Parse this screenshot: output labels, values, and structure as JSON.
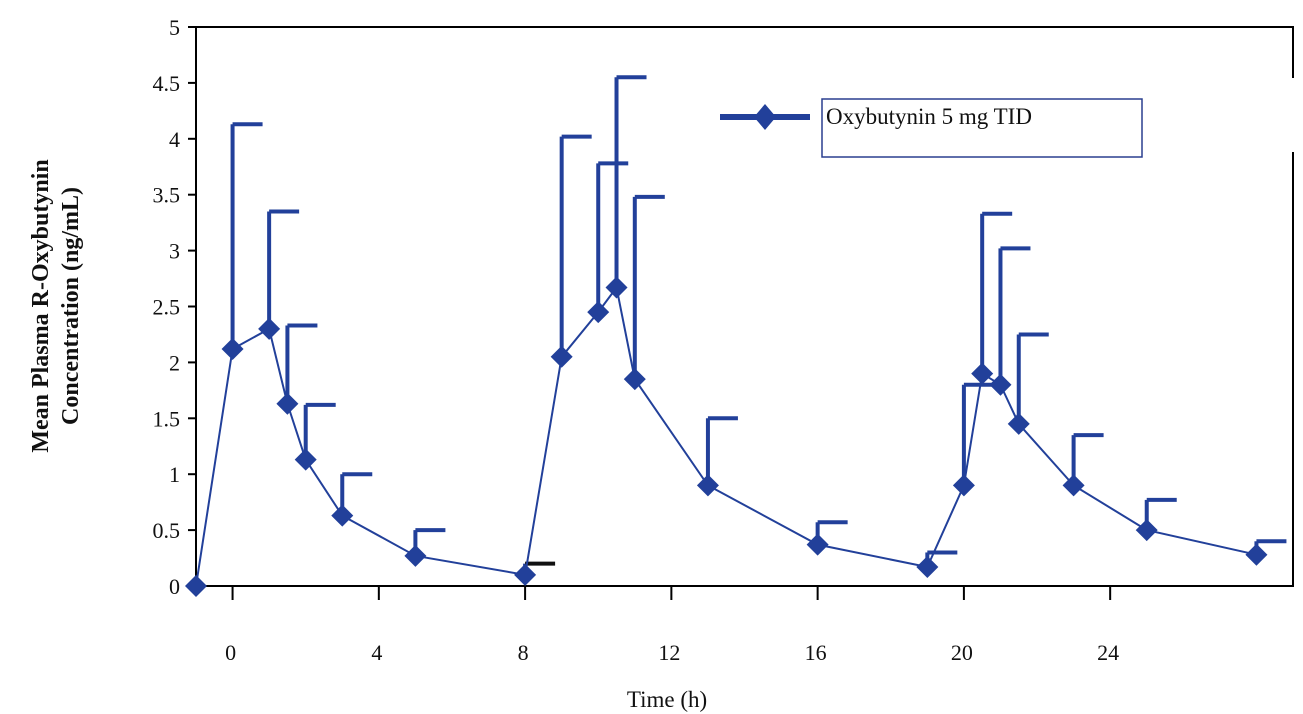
{
  "chart_data": {
    "type": "line",
    "title": "",
    "xlabel": "Time (h)",
    "ylabel_lines": [
      "Mean Plasma R-Oxybutynin",
      "Concentration (ng/mL)"
    ],
    "xlim": [
      -1,
      29
    ],
    "ylim": [
      0,
      5
    ],
    "x_ticks": [
      0,
      4,
      8,
      12,
      16,
      20,
      24
    ],
    "y_ticks": [
      0,
      0.5,
      1,
      1.5,
      2,
      2.5,
      3,
      3.5,
      4,
      4.5,
      5
    ],
    "grid": false,
    "legend_position": "top-right",
    "series": [
      {
        "name": "Oxybutynin 5 mg TID",
        "color": "#22409a",
        "marker": "diamond",
        "x": [
          -1,
          0,
          1,
          1.5,
          2,
          3,
          5,
          8,
          9,
          10,
          10.5,
          11,
          13,
          16,
          19,
          20,
          20.5,
          21,
          21.5,
          23,
          25,
          28
        ],
        "y": [
          0,
          2.12,
          2.3,
          1.63,
          1.13,
          0.63,
          0.27,
          0.1,
          2.05,
          2.45,
          2.67,
          1.85,
          0.9,
          0.37,
          0.17,
          0.9,
          1.9,
          1.8,
          1.45,
          0.9,
          0.5,
          0.28
        ],
        "error_upper": [
          0,
          4.13,
          3.35,
          2.33,
          1.62,
          1.0,
          0.5,
          0.2,
          4.02,
          3.78,
          4.55,
          3.48,
          1.5,
          0.57,
          0.3,
          1.8,
          3.33,
          3.02,
          2.25,
          1.35,
          0.77,
          0.4
        ]
      }
    ]
  }
}
